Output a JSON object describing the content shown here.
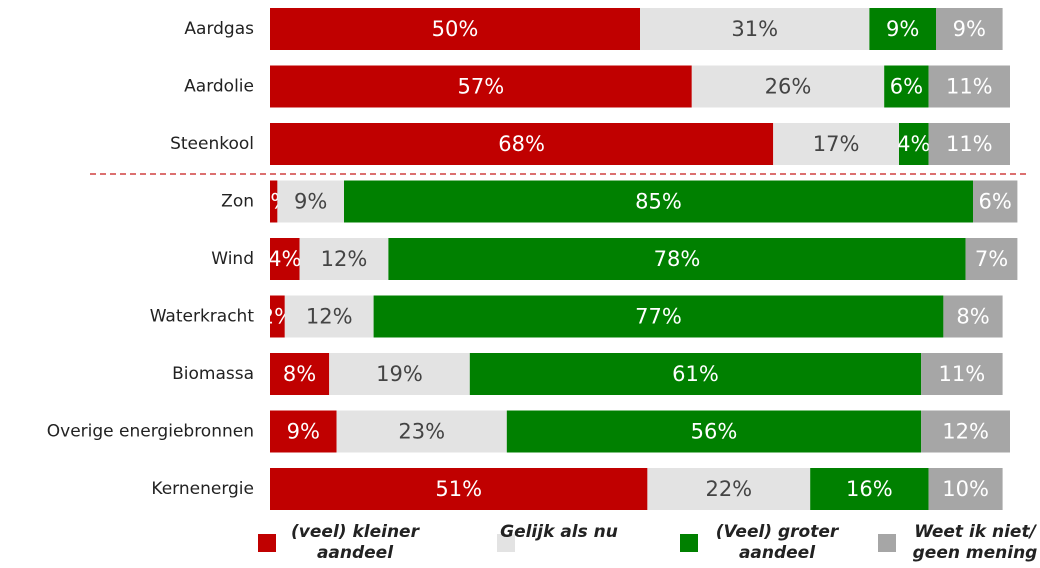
{
  "chart_data": {
    "type": "stacked-bar-horizontal",
    "categories": [
      "Aardgas",
      "Aardolie",
      "Steenkool",
      "Zon",
      "Wind",
      "Waterkracht",
      "Biomassa",
      "Overige energiebronnen",
      "Kernenergie"
    ],
    "series": [
      {
        "name": "(veel) kleiner aandeel",
        "color": "#c00000",
        "values": [
          50,
          57,
          68,
          1,
          4,
          2,
          8,
          9,
          51
        ],
        "value_labels": [
          "50%",
          "57%",
          "68%",
          "1%",
          "4%",
          "2%",
          "8%",
          "9%",
          "51%"
        ]
      },
      {
        "name": "Gelijk als nu",
        "color": "#e3e3e3",
        "values": [
          31,
          26,
          17,
          9,
          12,
          12,
          19,
          23,
          22
        ],
        "value_labels": [
          "31%",
          "26%",
          "17%",
          "9%",
          "12%",
          "12%",
          "19%",
          "23%",
          "22%"
        ]
      },
      {
        "name": "(Veel) groter aandeel",
        "color": "#008000",
        "values": [
          9,
          6,
          4,
          85,
          78,
          77,
          61,
          56,
          16
        ],
        "value_labels": [
          "9%",
          "6%",
          "4%",
          "85%",
          "78%",
          "77%",
          "61%",
          "56%",
          "16%"
        ]
      },
      {
        "name": "Weet ik niet/ geen mening",
        "color": "#a6a6a6",
        "values": [
          9,
          11,
          11,
          6,
          7,
          8,
          11,
          12,
          10
        ],
        "value_labels": [
          "9%",
          "11%",
          "11%",
          "6%",
          "7%",
          "8%",
          "11%",
          "12%",
          "10%"
        ]
      }
    ]
  }
}
